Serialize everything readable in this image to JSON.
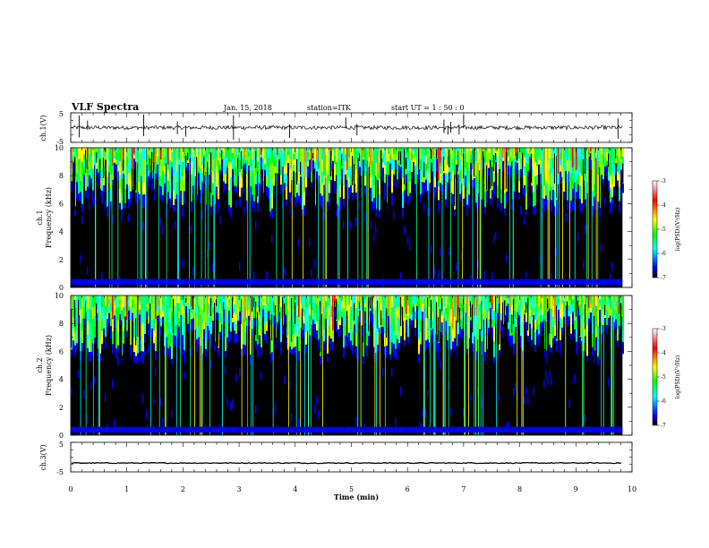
{
  "header": {
    "title": "VLF Spectra",
    "date": "Jan. 15, 2018",
    "station": "station=ITK",
    "start": "start UT =  1 : 50 : 0"
  },
  "chart_data": [
    {
      "type": "line",
      "name": "ch1-waveform",
      "ylabel": "ch.1(V)",
      "ylim": [
        -5,
        5
      ],
      "yticks": [
        "5",
        "-5"
      ],
      "baseline": 0
    },
    {
      "type": "heatmap",
      "name": "ch1-spectrogram",
      "ylabel_top": "ch.1",
      "ylabel": "Frequency (kHz)",
      "ylim": [
        0,
        10
      ],
      "yticks": [
        "0",
        "2",
        "4",
        "6",
        "8",
        "10"
      ],
      "colorbar": {
        "label": "log(PSD)(V²/Hz)",
        "ticks": [
          "-3",
          "-4",
          "-5",
          "-6",
          "-7"
        ],
        "range": [
          -7,
          -3
        ]
      }
    },
    {
      "type": "heatmap",
      "name": "ch2-spectrogram",
      "ylabel_top": "ch.2",
      "ylabel": "Frequency (kHz)",
      "ylim": [
        0,
        10
      ],
      "yticks": [
        "0",
        "2",
        "4",
        "6",
        "8",
        "10"
      ],
      "colorbar": {
        "label": "log(PSD)(V²/Hz)",
        "ticks": [
          "-3",
          "-4",
          "-5",
          "-6",
          "-7"
        ],
        "range": [
          -7,
          -3
        ]
      }
    },
    {
      "type": "line",
      "name": "ch3-waveform",
      "ylabel": "ch.3(V)",
      "ylim": [
        -5,
        5
      ],
      "yticks": [
        "5",
        "-5"
      ],
      "baseline": -2
    }
  ],
  "xaxis": {
    "label": "Time (min)",
    "range": [
      0,
      10
    ],
    "ticks": [
      "0",
      "1",
      "2",
      "3",
      "4",
      "5",
      "6",
      "7",
      "8",
      "9",
      "10"
    ],
    "data_end": 9.83
  },
  "colors": {
    "axis": "#000000",
    "colormap": [
      "#000000",
      "#0000ff",
      "#00ffff",
      "#00ff00",
      "#ffff00",
      "#ff0000",
      "#ffffff"
    ]
  }
}
